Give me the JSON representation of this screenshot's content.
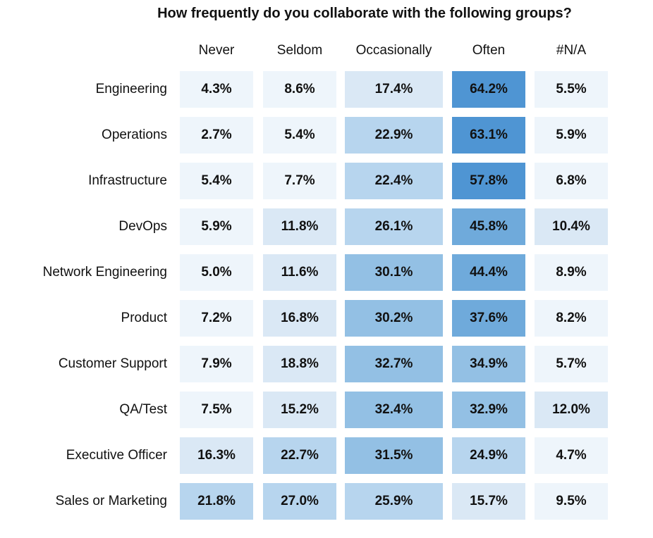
{
  "chart_data": {
    "type": "heatmap",
    "title": "How frequently do you collaborate with the following groups?",
    "columns": [
      "Never",
      "Seldom",
      "Occasionally",
      "Often",
      "#N/A"
    ],
    "rows": [
      "Engineering",
      "Operations",
      "Infrastructure",
      "DevOps",
      "Network Engineering",
      "Product",
      "Customer Support",
      "QA/Test",
      "Executive Officer",
      "Sales or Marketing"
    ],
    "values": [
      [
        4.3,
        8.6,
        17.4,
        64.2,
        5.5
      ],
      [
        2.7,
        5.4,
        22.9,
        63.1,
        5.9
      ],
      [
        5.4,
        7.7,
        22.4,
        57.8,
        6.8
      ],
      [
        5.9,
        11.8,
        26.1,
        45.8,
        10.4
      ],
      [
        5.0,
        11.6,
        30.1,
        44.4,
        8.9
      ],
      [
        7.2,
        16.8,
        30.2,
        37.6,
        8.2
      ],
      [
        7.9,
        18.8,
        32.7,
        34.9,
        5.7
      ],
      [
        7.5,
        15.2,
        32.4,
        32.9,
        12.0
      ],
      [
        16.3,
        22.7,
        31.5,
        24.9,
        4.7
      ],
      [
        21.8,
        27.0,
        25.9,
        15.7,
        9.5
      ]
    ],
    "value_format": "percent, 1 decimal",
    "color_scale": [
      "#EEF5FB",
      "#DAE8F5",
      "#B7D5EE",
      "#93C0E4",
      "#6FAADB",
      "#4F95D3"
    ]
  }
}
